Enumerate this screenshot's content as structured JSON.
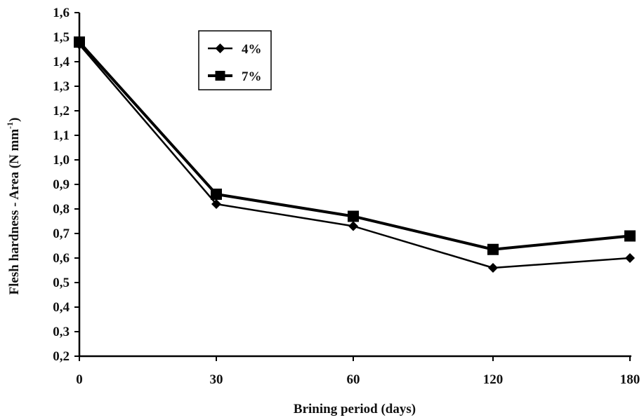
{
  "chart_data": {
    "type": "line",
    "x": [
      0,
      30,
      60,
      120,
      180
    ],
    "x_tick_labels": [
      "0",
      "30",
      "60",
      "120",
      "180"
    ],
    "series": [
      {
        "name": "4%",
        "marker": "diamond",
        "values": [
          1.47,
          0.82,
          0.73,
          0.56,
          0.6
        ]
      },
      {
        "name": "7%",
        "marker": "square",
        "values": [
          1.48,
          0.86,
          0.77,
          0.635,
          0.69
        ]
      }
    ],
    "y_tick_labels": [
      "0,2",
      "0,3",
      "0,4",
      "0,5",
      "0,6",
      "0,7",
      "0,8",
      "0,9",
      "1,0",
      "1,1",
      "1,2",
      "1,3",
      "1,4",
      "1,5",
      "1,6"
    ],
    "ylim": [
      0.2,
      1.6
    ],
    "y_ticks": [
      0.2,
      0.3,
      0.4,
      0.5,
      0.6,
      0.7,
      0.8,
      0.9,
      1.0,
      1.1,
      1.2,
      1.3,
      1.4,
      1.5,
      1.6
    ],
    "xlabel": "Brining period (days)",
    "ylabel": "Flesh hardness - Area (N mm",
    "ylabel_superscript": "-1",
    "ylabel_suffix": ")",
    "legend_position": "top-left-inside",
    "grid": false,
    "colors": {
      "line": "#000000",
      "background": "#ffffff"
    }
  }
}
